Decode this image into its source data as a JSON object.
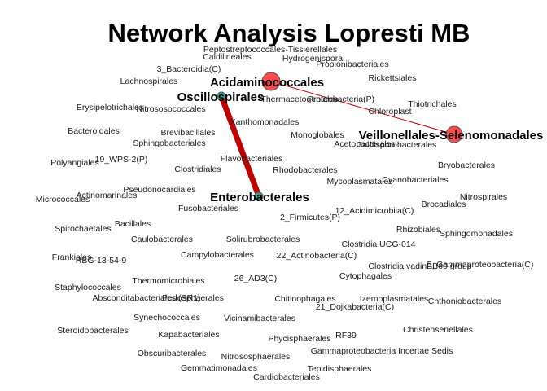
{
  "title": "Network Analysis Lopresti MB",
  "colors": {
    "edge": "#c00000",
    "node_large": "#ff4a4a",
    "node_small": "#3fa7a0",
    "node_stroke": "#555555"
  },
  "hubs": [
    {
      "label": "Acidaminococcales",
      "size": "large"
    },
    {
      "label": "Oscillospirales",
      "size": "small"
    },
    {
      "label": "Enterobacterales",
      "size": "small"
    },
    {
      "label": "Veillonellales-Selenomonadales",
      "size": "large"
    }
  ],
  "edges": [
    {
      "from": "Oscillospirales",
      "to": "Enterobacterales",
      "weight": "thick"
    },
    {
      "from": "Acidaminococcales",
      "to": "Veillonellales-Selenomonadales",
      "weight": "thin"
    }
  ],
  "labels": [
    "Peptostreptococcales-Tissierellales",
    "Caldilineales",
    "Hydrogenispora",
    "3_Bacteroidia(C)",
    "Propionibacteriales",
    "Lachnospirales",
    "Rickettsiales",
    "Thermacetogeniales",
    "Proteobacteria(P)",
    "Erysipelotrichales",
    "Nitrososococcales",
    "Chloroplast",
    "Thiotrichales",
    "Xanthomonadales",
    "Bacteroidales",
    "Brevibacillales",
    "Monoglobales",
    "Sphingobacteriales",
    "Acetobacterales",
    "Caldisporobacterales",
    "Flavobacteriales",
    "19_WPS-2(P)",
    "Polyangiales",
    "Clostridiales",
    "Rhodobacterales",
    "Bryobacterales",
    "Mycoplasmatales",
    "Cyanobacteriales",
    "Pseudonocardiales",
    "Actinomarinales",
    "Micrococcales",
    "Nitrospirales",
    "Brocadiales",
    "Fusobacteriales",
    "12_Acidimicrobiia(C)",
    "2_Firmicutes(P)",
    "Spirochaetales",
    "Bacillales",
    "Rhizobiales",
    "Sphingomonadales",
    "Caulobacterales",
    "Solirubrobacterales",
    "Clostridia UCG-014",
    "Frankiales",
    "RBG-13-54-9",
    "Campylobacterales",
    "22_Actinobacteria(C)",
    "Clostridia vadinBB60 group",
    "5_Gammaproteobacteria(C)",
    "Cytophagales",
    "Thermomicrobiales",
    "26_AD3(C)",
    "Staphylococcales",
    "Absconditabacteriales (SR1)",
    "Pedosphaerales",
    "Chitinophagales",
    "Izemoplasmatales",
    "Chthoniobacterales",
    "21_Dojkabacteria(C)",
    "Synechococcales",
    "Vicinamibacterales",
    "Steroidobacterales",
    "Kapabacteriales",
    "Phycisphaerales",
    "RF39",
    "Christensenellales",
    "Obscuribacterales",
    "Nitrososphaerales",
    "Gammaproteobacteria Incertae Sedis",
    "Gemmatimonadales",
    "Tepidisphaerales",
    "Cardiobacteriales"
  ]
}
